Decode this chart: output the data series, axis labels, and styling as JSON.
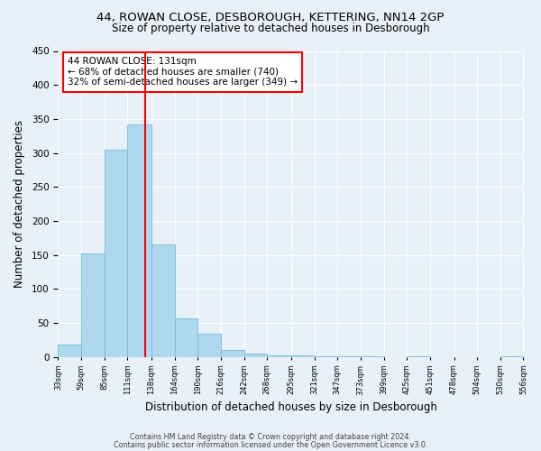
{
  "title1": "44, ROWAN CLOSE, DESBOROUGH, KETTERING, NN14 2GP",
  "title2": "Size of property relative to detached houses in Desborough",
  "xlabel": "Distribution of detached houses by size in Desborough",
  "ylabel": "Number of detached properties",
  "bin_edges": [
    33,
    59,
    85,
    111,
    138,
    164,
    190,
    216,
    242,
    268,
    295,
    321,
    347,
    373,
    399,
    425,
    451,
    478,
    504,
    530,
    556
  ],
  "bar_heights": [
    18,
    153,
    305,
    342,
    165,
    57,
    35,
    10,
    5,
    2,
    2,
    1,
    1,
    1,
    0,
    1,
    0,
    0,
    0,
    1
  ],
  "bar_color": "#add8f0",
  "bar_edge_color": "#7ab8d8",
  "vline_x": 131,
  "vline_color": "red",
  "annotation_title": "44 ROWAN CLOSE: 131sqm",
  "annotation_line1": "← 68% of detached houses are smaller (740)",
  "annotation_line2": "32% of semi-detached houses are larger (349) →",
  "annotation_box_color": "red",
  "ylim": [
    0,
    450
  ],
  "yticks": [
    0,
    50,
    100,
    150,
    200,
    250,
    300,
    350,
    400,
    450
  ],
  "footer1": "Contains HM Land Registry data © Crown copyright and database right 2024.",
  "footer2": "Contains public sector information licensed under the Open Government Licence v3.0.",
  "bg_color": "#e8f0f8"
}
